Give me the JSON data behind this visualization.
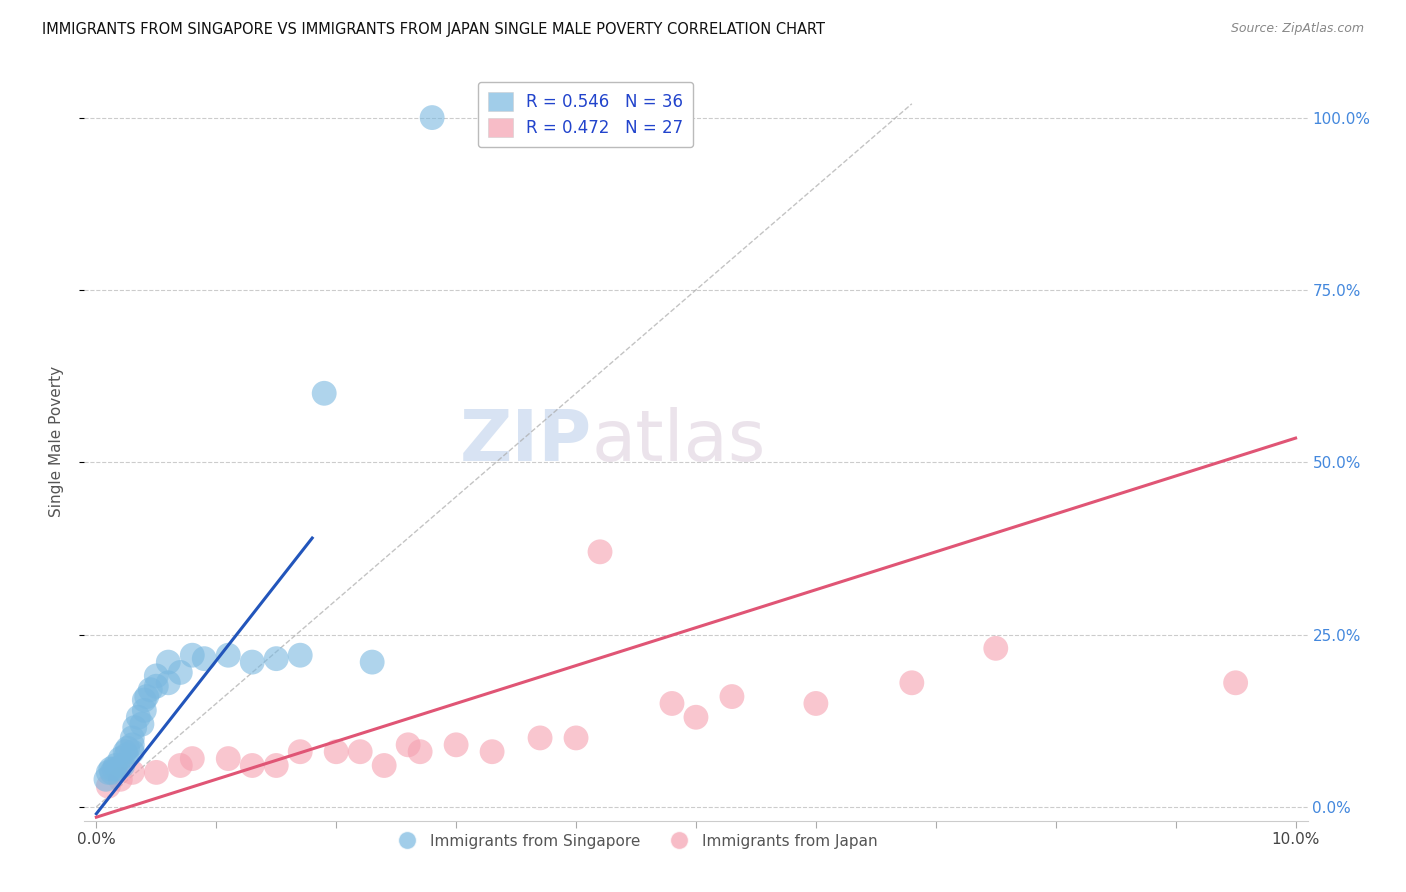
{
  "title": "IMMIGRANTS FROM SINGAPORE VS IMMIGRANTS FROM JAPAN SINGLE MALE POVERTY CORRELATION CHART",
  "source": "Source: ZipAtlas.com",
  "ylabel": "Single Male Poverty",
  "xlim": [
    -0.001,
    0.101
  ],
  "ylim": [
    -0.02,
    1.08
  ],
  "ytick_vals": [
    0.0,
    0.25,
    0.5,
    0.75,
    1.0
  ],
  "xtick_vals": [
    0.0,
    0.01,
    0.02,
    0.03,
    0.04,
    0.05,
    0.06,
    0.07,
    0.08,
    0.09,
    0.1
  ],
  "singapore_color": "#7ab8e0",
  "singapore_edge_color": "#4d94c9",
  "japan_color": "#f5a0b0",
  "japan_edge_color": "#e06080",
  "trend_sg_color": "#2255bb",
  "trend_jp_color": "#e05575",
  "singapore_R": 0.546,
  "singapore_N": 36,
  "japan_R": 0.472,
  "japan_N": 27,
  "legend_label_singapore": "Immigrants from Singapore",
  "legend_label_japan": "Immigrants from Japan",
  "watermark_zip": "ZIP",
  "watermark_atlas": "atlas",
  "sg_x": [
    0.0008,
    0.001,
    0.0012,
    0.0013,
    0.0015,
    0.0016,
    0.0018,
    0.002,
    0.0022,
    0.0024,
    0.0025,
    0.0026,
    0.003,
    0.003,
    0.003,
    0.0032,
    0.0035,
    0.0038,
    0.004,
    0.004,
    0.0042,
    0.0045,
    0.005,
    0.005,
    0.006,
    0.006,
    0.007,
    0.008,
    0.009,
    0.011,
    0.013,
    0.015,
    0.017,
    0.019,
    0.023,
    0.028
  ],
  "sg_y": [
    0.04,
    0.05,
    0.055,
    0.05,
    0.055,
    0.06,
    0.055,
    0.07,
    0.06,
    0.08,
    0.075,
    0.085,
    0.08,
    0.09,
    0.1,
    0.115,
    0.13,
    0.12,
    0.14,
    0.155,
    0.16,
    0.17,
    0.175,
    0.19,
    0.18,
    0.21,
    0.195,
    0.22,
    0.215,
    0.22,
    0.21,
    0.215,
    0.22,
    0.6,
    0.21,
    1.0
  ],
  "jp_x": [
    0.001,
    0.002,
    0.003,
    0.005,
    0.007,
    0.008,
    0.011,
    0.013,
    0.015,
    0.017,
    0.02,
    0.022,
    0.024,
    0.026,
    0.027,
    0.03,
    0.033,
    0.037,
    0.04,
    0.042,
    0.048,
    0.05,
    0.053,
    0.06,
    0.068,
    0.075,
    0.095
  ],
  "jp_y": [
    0.03,
    0.04,
    0.05,
    0.05,
    0.06,
    0.07,
    0.07,
    0.06,
    0.06,
    0.08,
    0.08,
    0.08,
    0.06,
    0.09,
    0.08,
    0.09,
    0.08,
    0.1,
    0.1,
    0.37,
    0.15,
    0.13,
    0.16,
    0.15,
    0.18,
    0.23,
    0.18
  ],
  "sg_trend_x": [
    0.0,
    0.018
  ],
  "sg_trend_y": [
    -0.01,
    0.39
  ],
  "jp_trend_x": [
    0.0,
    0.1
  ],
  "jp_trend_y": [
    -0.015,
    0.535
  ]
}
